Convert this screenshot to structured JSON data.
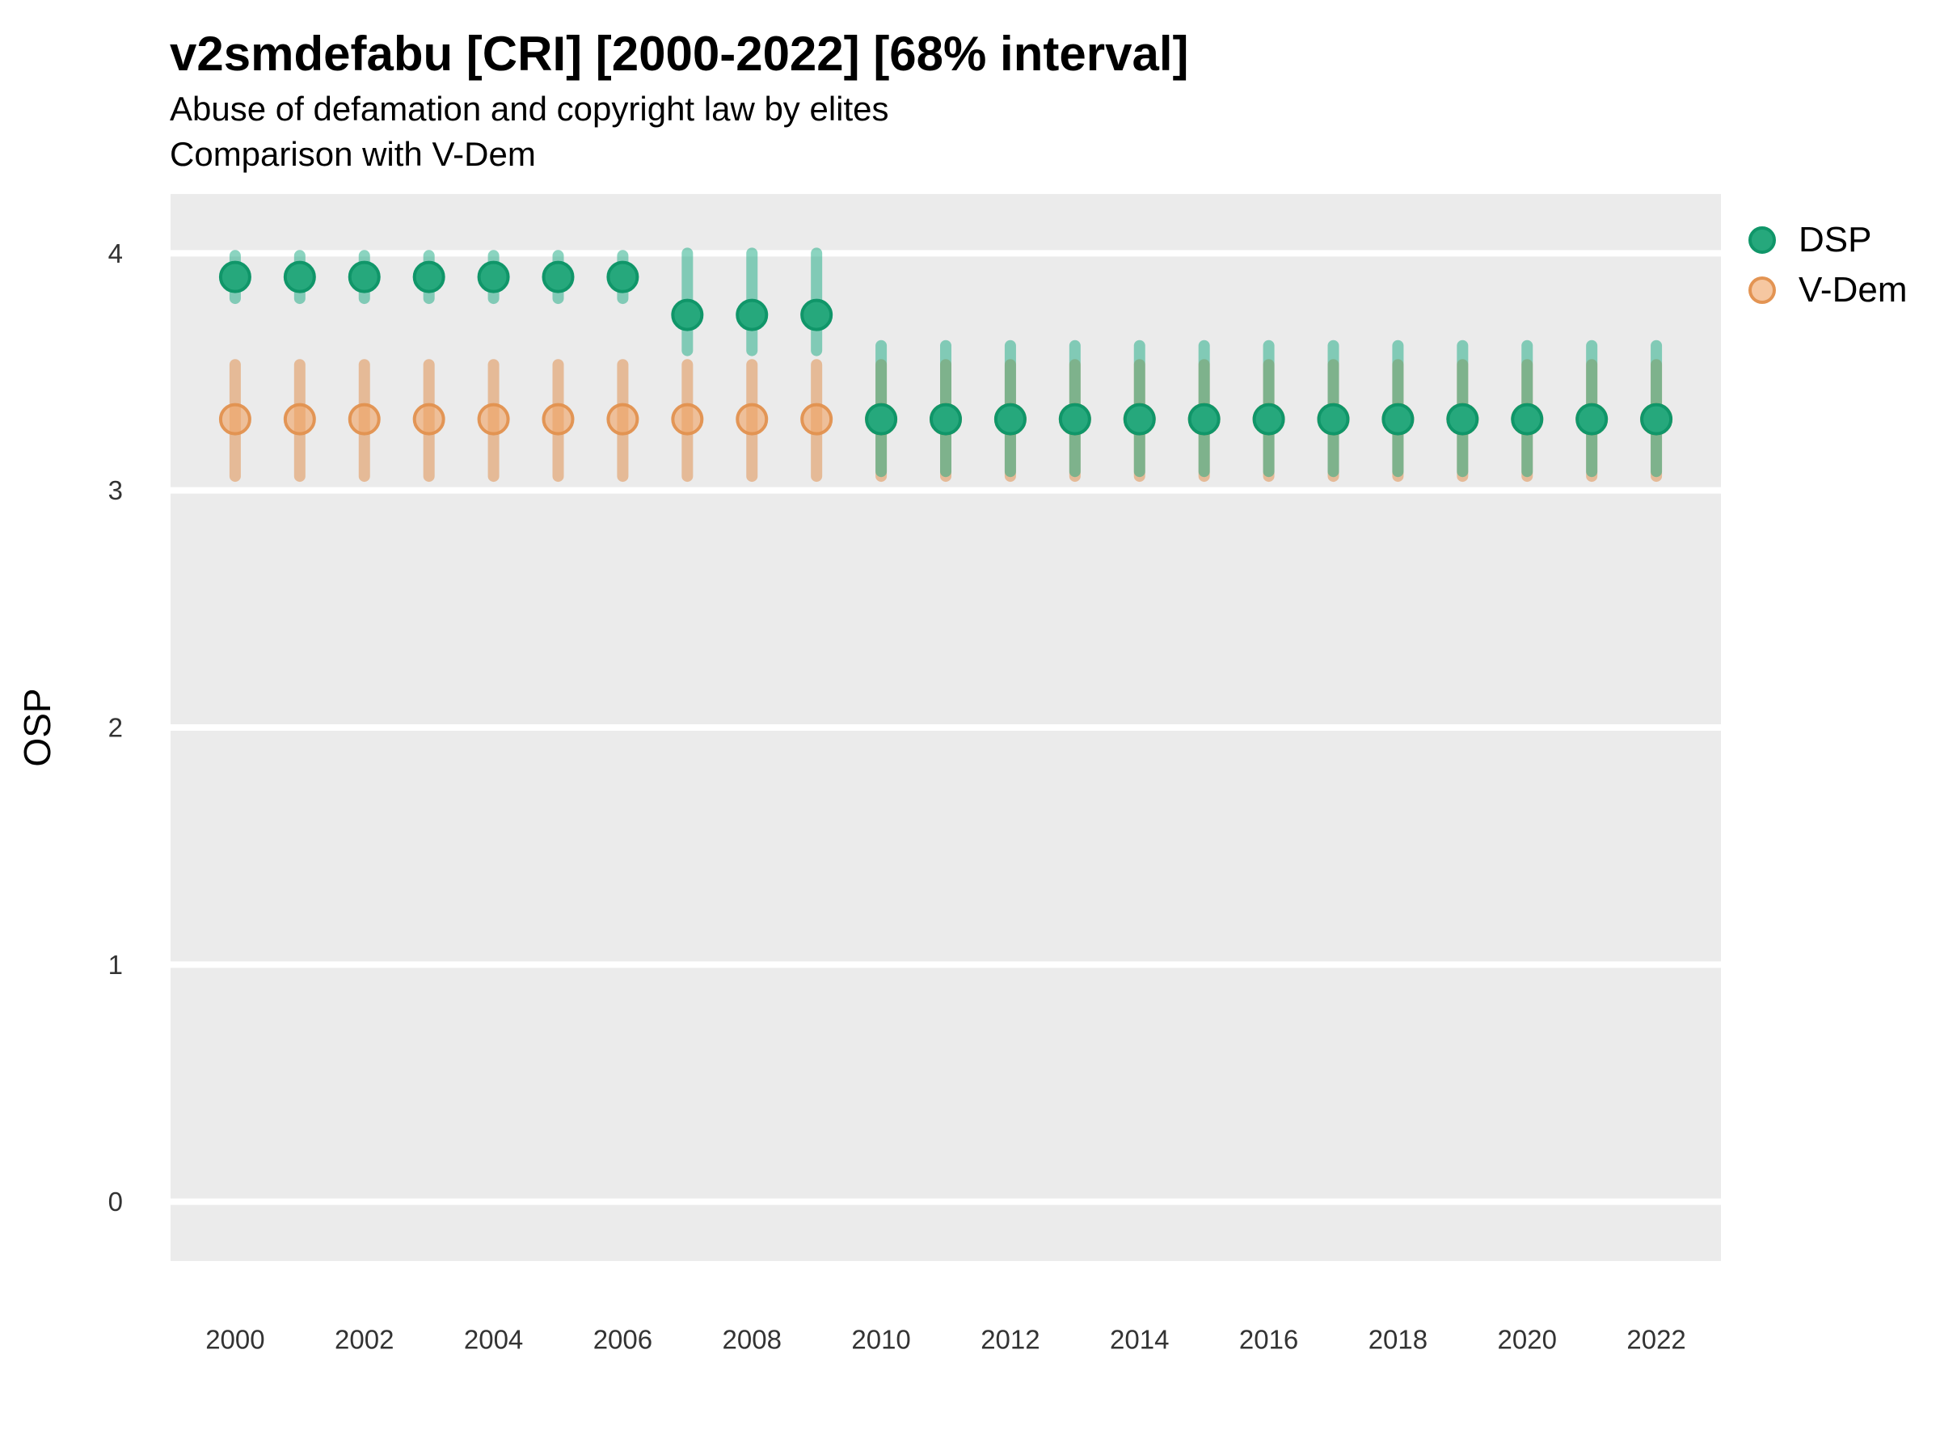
{
  "chart_data": {
    "type": "scatter",
    "error_bars": "68% interval",
    "title": "v2smdefabu [CRI] [2000-2022] [68% interval]",
    "subtitle": "Abuse of defamation and copyright law by elites",
    "note": "Comparison with V-Dem",
    "xlabel": "",
    "ylabel": "OSP",
    "x_domain": [
      1999,
      2023
    ],
    "y_domain": [
      -0.25,
      4.25
    ],
    "x_ticks": [
      2000,
      2002,
      2004,
      2006,
      2008,
      2010,
      2012,
      2014,
      2016,
      2018,
      2020,
      2022
    ],
    "y_ticks": [
      0,
      1,
      2,
      3,
      4
    ],
    "grid": "major horizontal white lines on gray panel",
    "legend_position": "right-top",
    "colors": {
      "panel_bg": "#ebebeb",
      "grid": "#ffffff",
      "tick_text": "#333333",
      "text": "#000000"
    },
    "series": [
      {
        "name": "DSP",
        "point_fill": "rgba(38,168,124,1)",
        "point_stroke": "rgba(16,150,105,1)",
        "bar_color": "rgba(23,170,130,0.5)",
        "points": [
          {
            "year": 2000,
            "value": 3.9,
            "lo": 3.81,
            "hi": 3.99
          },
          {
            "year": 2001,
            "value": 3.9,
            "lo": 3.81,
            "hi": 3.99
          },
          {
            "year": 2002,
            "value": 3.9,
            "lo": 3.81,
            "hi": 3.99
          },
          {
            "year": 2003,
            "value": 3.9,
            "lo": 3.81,
            "hi": 3.99
          },
          {
            "year": 2004,
            "value": 3.9,
            "lo": 3.81,
            "hi": 3.99
          },
          {
            "year": 2005,
            "value": 3.9,
            "lo": 3.81,
            "hi": 3.99
          },
          {
            "year": 2006,
            "value": 3.9,
            "lo": 3.81,
            "hi": 3.99
          },
          {
            "year": 2007,
            "value": 3.74,
            "lo": 3.59,
            "hi": 4.0
          },
          {
            "year": 2008,
            "value": 3.74,
            "lo": 3.59,
            "hi": 4.0
          },
          {
            "year": 2009,
            "value": 3.74,
            "lo": 3.59,
            "hi": 4.0
          },
          {
            "year": 2010,
            "value": 3.3,
            "lo": 3.08,
            "hi": 3.61
          },
          {
            "year": 2011,
            "value": 3.3,
            "lo": 3.08,
            "hi": 3.61
          },
          {
            "year": 2012,
            "value": 3.3,
            "lo": 3.08,
            "hi": 3.61
          },
          {
            "year": 2013,
            "value": 3.3,
            "lo": 3.08,
            "hi": 3.61
          },
          {
            "year": 2014,
            "value": 3.3,
            "lo": 3.08,
            "hi": 3.61
          },
          {
            "year": 2015,
            "value": 3.3,
            "lo": 3.08,
            "hi": 3.61
          },
          {
            "year": 2016,
            "value": 3.3,
            "lo": 3.08,
            "hi": 3.61
          },
          {
            "year": 2017,
            "value": 3.3,
            "lo": 3.08,
            "hi": 3.61
          },
          {
            "year": 2018,
            "value": 3.3,
            "lo": 3.08,
            "hi": 3.61
          },
          {
            "year": 2019,
            "value": 3.3,
            "lo": 3.08,
            "hi": 3.61
          },
          {
            "year": 2020,
            "value": 3.3,
            "lo": 3.08,
            "hi": 3.61
          },
          {
            "year": 2021,
            "value": 3.3,
            "lo": 3.08,
            "hi": 3.61
          },
          {
            "year": 2022,
            "value": 3.3,
            "lo": 3.08,
            "hi": 3.61
          }
        ]
      },
      {
        "name": "V-Dem",
        "point_fill": "rgba(240,164,104,0.62)",
        "point_stroke": "rgba(226,145,79,0.95)",
        "bar_color": "rgba(224,138,68,0.5)",
        "points": [
          {
            "year": 2000,
            "value": 3.3,
            "lo": 3.06,
            "hi": 3.53
          },
          {
            "year": 2001,
            "value": 3.3,
            "lo": 3.06,
            "hi": 3.53
          },
          {
            "year": 2002,
            "value": 3.3,
            "lo": 3.06,
            "hi": 3.53
          },
          {
            "year": 2003,
            "value": 3.3,
            "lo": 3.06,
            "hi": 3.53
          },
          {
            "year": 2004,
            "value": 3.3,
            "lo": 3.06,
            "hi": 3.53
          },
          {
            "year": 2005,
            "value": 3.3,
            "lo": 3.06,
            "hi": 3.53
          },
          {
            "year": 2006,
            "value": 3.3,
            "lo": 3.06,
            "hi": 3.53
          },
          {
            "year": 2007,
            "value": 3.3,
            "lo": 3.06,
            "hi": 3.53
          },
          {
            "year": 2008,
            "value": 3.3,
            "lo": 3.06,
            "hi": 3.53
          },
          {
            "year": 2009,
            "value": 3.3,
            "lo": 3.06,
            "hi": 3.53
          },
          {
            "year": 2010,
            "value": 3.3,
            "lo": 3.06,
            "hi": 3.53
          },
          {
            "year": 2011,
            "value": 3.3,
            "lo": 3.06,
            "hi": 3.53
          },
          {
            "year": 2012,
            "value": 3.3,
            "lo": 3.06,
            "hi": 3.53
          },
          {
            "year": 2013,
            "value": 3.3,
            "lo": 3.06,
            "hi": 3.53
          },
          {
            "year": 2014,
            "value": 3.3,
            "lo": 3.06,
            "hi": 3.53
          },
          {
            "year": 2015,
            "value": 3.3,
            "lo": 3.06,
            "hi": 3.53
          },
          {
            "year": 2016,
            "value": 3.3,
            "lo": 3.06,
            "hi": 3.53
          },
          {
            "year": 2017,
            "value": 3.3,
            "lo": 3.06,
            "hi": 3.53
          },
          {
            "year": 2018,
            "value": 3.3,
            "lo": 3.06,
            "hi": 3.53
          },
          {
            "year": 2019,
            "value": 3.3,
            "lo": 3.06,
            "hi": 3.53
          },
          {
            "year": 2020,
            "value": 3.3,
            "lo": 3.06,
            "hi": 3.53
          },
          {
            "year": 2021,
            "value": 3.3,
            "lo": 3.06,
            "hi": 3.53
          },
          {
            "year": 2022,
            "value": 3.3,
            "lo": 3.06,
            "hi": 3.53
          }
        ]
      }
    ]
  }
}
